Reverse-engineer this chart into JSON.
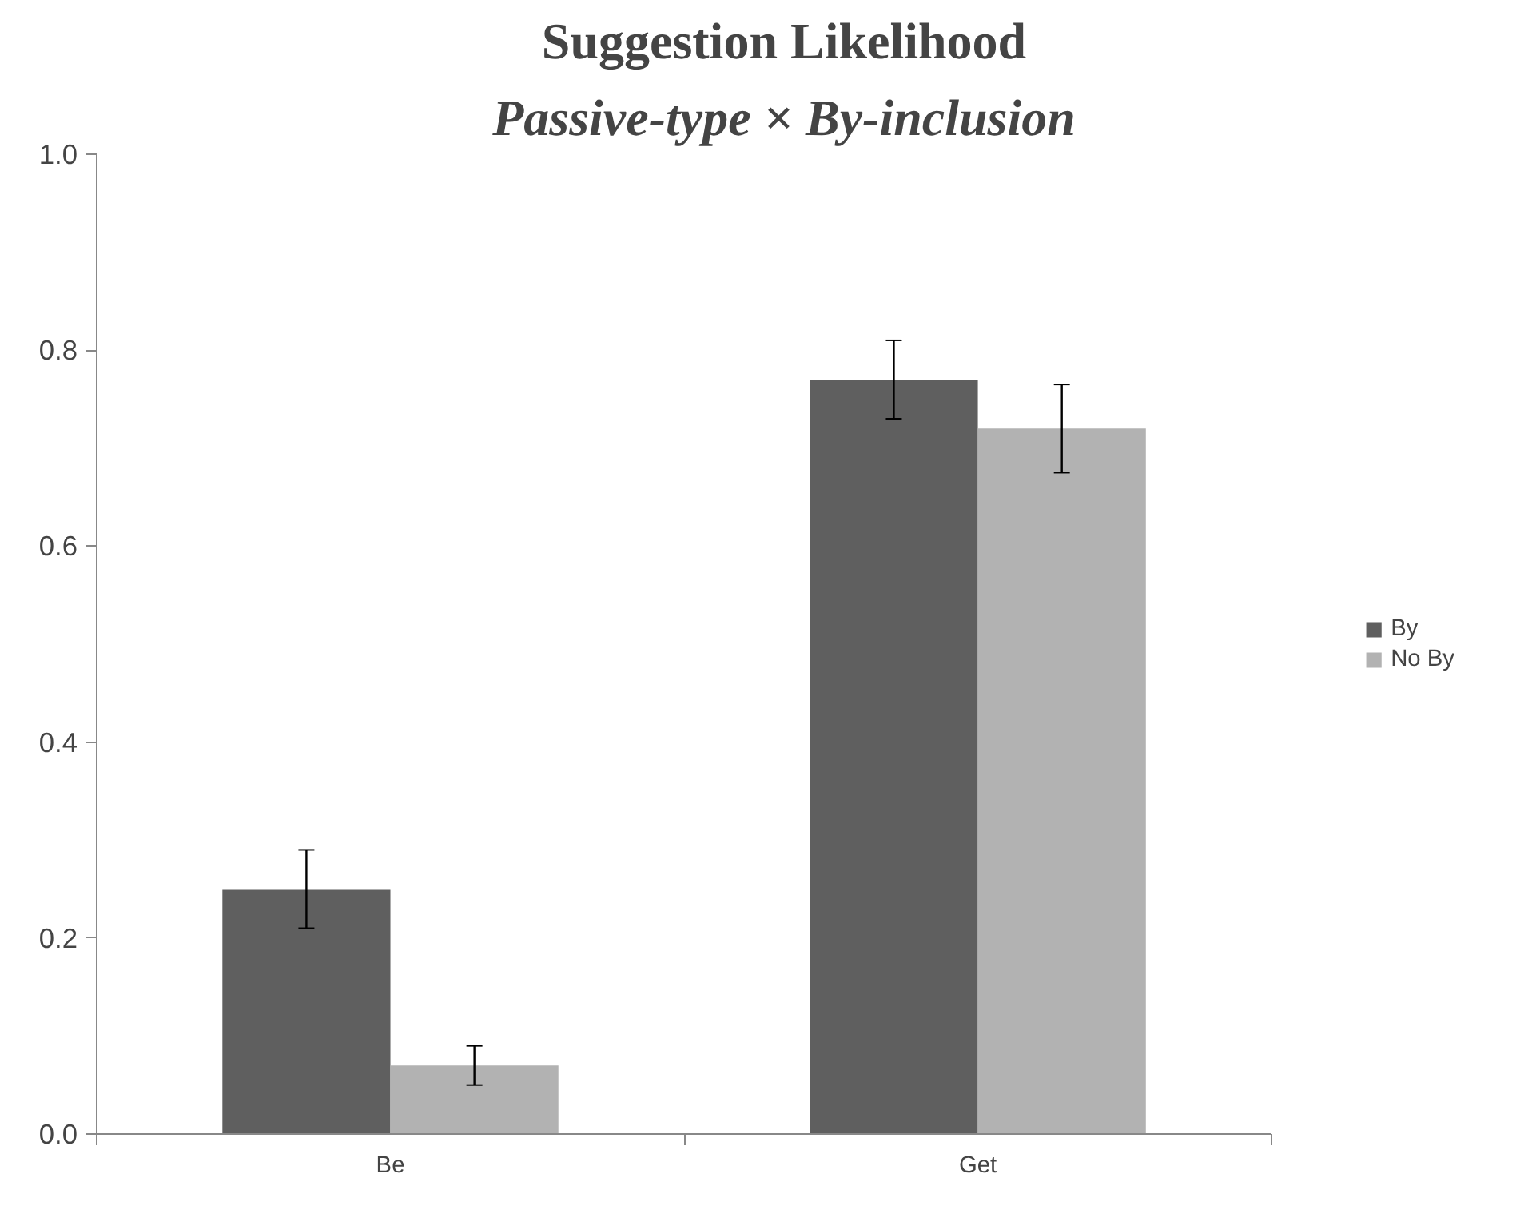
{
  "chart_data": {
    "type": "bar",
    "title": "Suggestion Likelihood",
    "subtitle": "Passive-type × By-inclusion",
    "categories": [
      "Be",
      "Get"
    ],
    "series": [
      {
        "name": "By",
        "color": "#5f5f5f",
        "values": [
          0.25,
          0.77
        ],
        "errors": [
          0.04,
          0.04
        ]
      },
      {
        "name": "No By",
        "color": "#b2b2b2",
        "values": [
          0.07,
          0.72
        ],
        "errors": [
          0.02,
          0.045
        ]
      }
    ],
    "ylim": [
      0,
      1.0
    ],
    "yticks": [
      {
        "value": 0,
        "label": "0.0"
      },
      {
        "value": 0.2,
        "label": "0.2"
      },
      {
        "value": 0.4,
        "label": "0.4"
      },
      {
        "value": 0.6,
        "label": "0.6"
      },
      {
        "value": 0.8,
        "label": "0.8"
      },
      {
        "value": 1.0,
        "label": "1.0"
      }
    ],
    "grid": false,
    "legend": "right"
  }
}
